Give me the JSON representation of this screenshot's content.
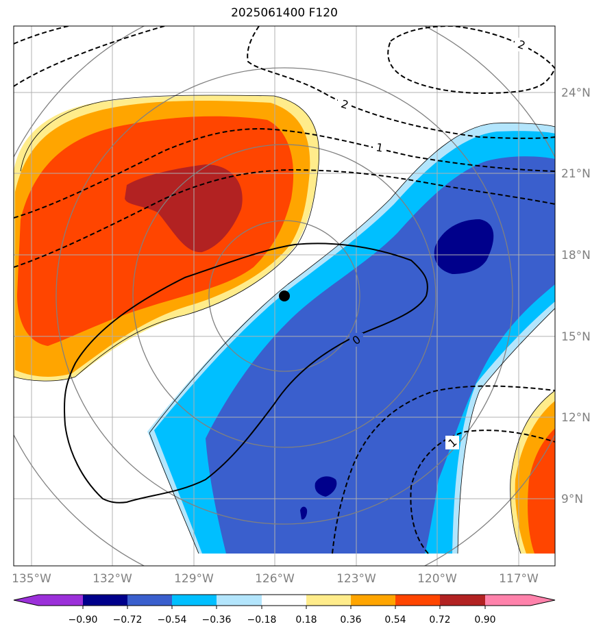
{
  "title": "2025061400 F120",
  "map": {
    "lon_ticks": [
      "135°W",
      "132°W",
      "129°W",
      "126°W",
      "123°W",
      "120°W",
      "117°W"
    ],
    "lat_ticks": [
      "24°N",
      "21°N",
      "18°N",
      "15°N",
      "12°N",
      "9°N"
    ],
    "grid_color": "#b0b0b0",
    "range_ring_color": "#808080",
    "storm_center_marker": "black-dot"
  },
  "contour_labels": [
    "2",
    "2",
    "1",
    "0",
    "1"
  ],
  "colorbar": {
    "ticks": [
      "−0.90",
      "−0.72",
      "−0.54",
      "−0.36",
      "−0.18",
      "0.18",
      "0.36",
      "0.54",
      "0.72",
      "0.90"
    ],
    "colors": [
      "#9b30d9",
      "#00008b",
      "#3a5fcd",
      "#00bfff",
      "#b3e5fc",
      "#ffffff",
      "#ffec8b",
      "#ffa500",
      "#ff4500",
      "#b22222",
      "#ff82ab"
    ]
  }
}
